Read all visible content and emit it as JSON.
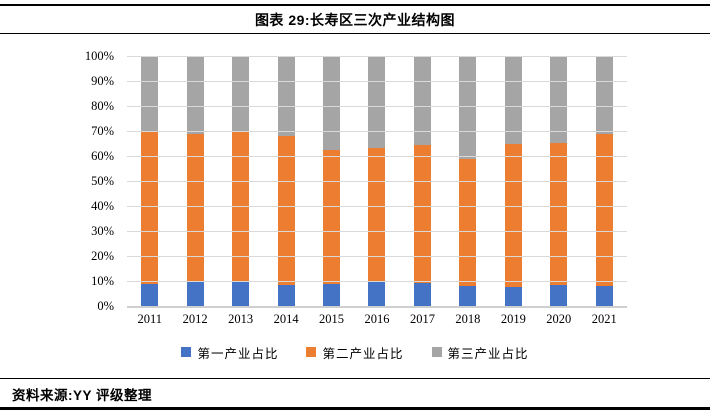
{
  "header": {
    "title": "图表 29:长寿区三次产业结构图"
  },
  "footer": {
    "source": "资料来源:YY 评级整理"
  },
  "colors": {
    "primary_blue": "#4472C4",
    "secondary_orange": "#ED7D31",
    "tertiary_gray": "#A5A5A5",
    "gridline": "#D9D9D9",
    "axis_line": "#CFCFCF",
    "rule_black": "#000000"
  },
  "chart_data": {
    "type": "bar",
    "stacked": true,
    "percent_stacked": true,
    "title": "长寿区三次产业结构图",
    "categories": [
      "2011",
      "2012",
      "2013",
      "2014",
      "2015",
      "2016",
      "2017",
      "2018",
      "2019",
      "2020",
      "2021"
    ],
    "series": [
      {
        "name": "第一产业占比",
        "color": "#4472C4",
        "values": [
          8.7,
          9.6,
          9.5,
          8.5,
          9.0,
          10.0,
          9.2,
          8.0,
          7.8,
          8.6,
          8.0
        ]
      },
      {
        "name": "第二产业占比",
        "color": "#ED7D31",
        "values": [
          60.8,
          59.2,
          60.2,
          59.6,
          53.4,
          53.3,
          55.2,
          50.7,
          57.1,
          56.5,
          60.7
        ]
      },
      {
        "name": "第三产业占比",
        "color": "#A5A5A5",
        "values": [
          30.5,
          31.2,
          30.3,
          31.9,
          37.6,
          36.7,
          35.6,
          41.3,
          35.1,
          34.9,
          31.3
        ]
      }
    ],
    "xlabel": "",
    "ylabel": "",
    "ylim": [
      0,
      100
    ],
    "y_ticks": [
      "100%",
      "90%",
      "80%",
      "70%",
      "60%",
      "50%",
      "40%",
      "30%",
      "20%",
      "10%",
      "0%"
    ],
    "grid": true,
    "legend_position": "bottom"
  }
}
